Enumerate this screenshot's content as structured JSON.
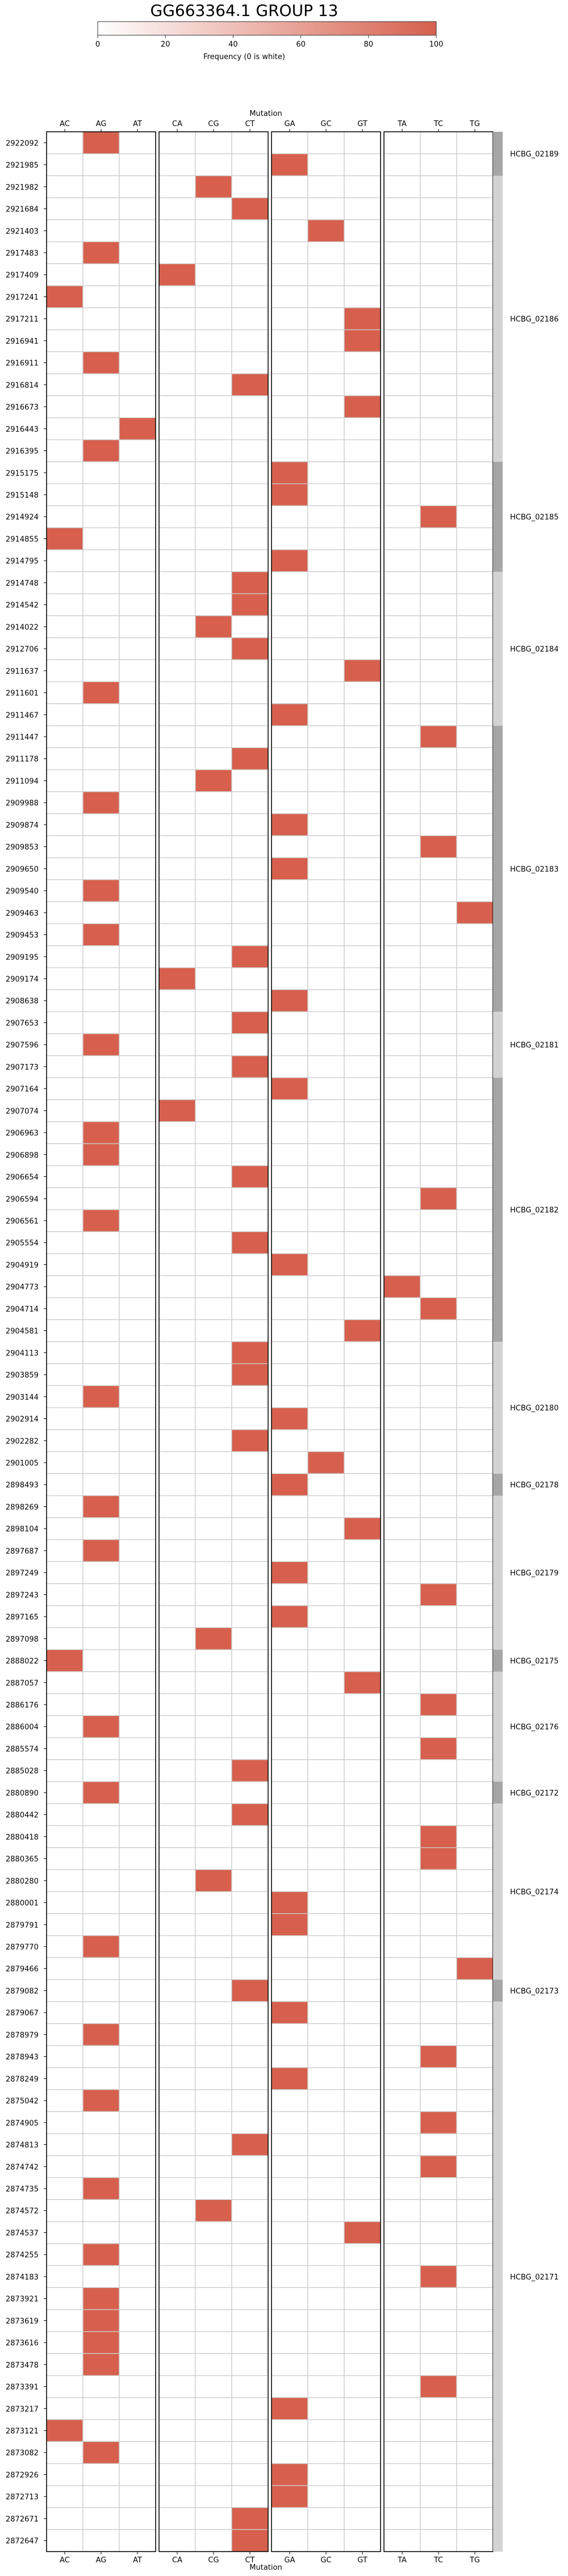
{
  "chart_data": {
    "type": "heatmap",
    "title": "GG663364.1 GROUP 13",
    "xlabel": "Mutation",
    "colorbar": {
      "label": "Frequency (0 is white)",
      "ticks": [
        0,
        20,
        40,
        60,
        80,
        100
      ],
      "range": [
        0,
        100
      ],
      "low_color": "#ffffff",
      "high_color": "#d6604d"
    },
    "panels": [
      {
        "name": "A",
        "columns": [
          "AC",
          "AG",
          "AT"
        ]
      },
      {
        "name": "C",
        "columns": [
          "CA",
          "CG",
          "CT"
        ]
      },
      {
        "name": "G",
        "columns": [
          "GA",
          "GC",
          "GT"
        ]
      },
      {
        "name": "T",
        "columns": [
          "TA",
          "TC",
          "TG"
        ]
      }
    ],
    "rows": [
      "2922092",
      "2921985",
      "2921982",
      "2921684",
      "2921403",
      "2917483",
      "2917409",
      "2917241",
      "2917211",
      "2916941",
      "2916911",
      "2916814",
      "2916673",
      "2916443",
      "2916395",
      "2915175",
      "2915148",
      "2914924",
      "2914855",
      "2914795",
      "2914748",
      "2914542",
      "2914022",
      "2912706",
      "2911637",
      "2911601",
      "2911467",
      "2911447",
      "2911178",
      "2911094",
      "2909988",
      "2909874",
      "2909853",
      "2909650",
      "2909540",
      "2909463",
      "2909453",
      "2909195",
      "2909174",
      "2908638",
      "2907653",
      "2907596",
      "2907173",
      "2907164",
      "2907074",
      "2906963",
      "2906898",
      "2906654",
      "2906594",
      "2906561",
      "2905554",
      "2904919",
      "2904773",
      "2904714",
      "2904581",
      "2904113",
      "2903859",
      "2903144",
      "2902914",
      "2902282",
      "2901005",
      "2898493",
      "2898269",
      "2898104",
      "2897687",
      "2897249",
      "2897243",
      "2897165",
      "2897098",
      "2888022",
      "2887057",
      "2886176",
      "2886004",
      "2885574",
      "2885028",
      "2880890",
      "2880442",
      "2880418",
      "2880365",
      "2880280",
      "2880001",
      "2879791",
      "2879770",
      "2879466",
      "2879082",
      "2879067",
      "2878979",
      "2878943",
      "2878249",
      "2875042",
      "2874905",
      "2874813",
      "2874742",
      "2874735",
      "2874572",
      "2874537",
      "2874255",
      "2874183",
      "2873921",
      "2873619",
      "2873616",
      "2873478",
      "2873391",
      "2873217",
      "2873121",
      "2873082",
      "2872926",
      "2872713",
      "2872671",
      "2872647"
    ],
    "cells": [
      {
        "row": "2922092",
        "col": "AG",
        "value": 100
      },
      {
        "row": "2921985",
        "col": "GA",
        "value": 100
      },
      {
        "row": "2921982",
        "col": "CG",
        "value": 100
      },
      {
        "row": "2921684",
        "col": "CT",
        "value": 100
      },
      {
        "row": "2921403",
        "col": "GC",
        "value": 100
      },
      {
        "row": "2917483",
        "col": "AG",
        "value": 100
      },
      {
        "row": "2917409",
        "col": "CA",
        "value": 100
      },
      {
        "row": "2917241",
        "col": "AC",
        "value": 100
      },
      {
        "row": "2917211",
        "col": "GT",
        "value": 100
      },
      {
        "row": "2916941",
        "col": "GT",
        "value": 100
      },
      {
        "row": "2916911",
        "col": "AG",
        "value": 100
      },
      {
        "row": "2916814",
        "col": "CT",
        "value": 100
      },
      {
        "row": "2916673",
        "col": "GT",
        "value": 100
      },
      {
        "row": "2916443",
        "col": "AT",
        "value": 100
      },
      {
        "row": "2916395",
        "col": "AG",
        "value": 100
      },
      {
        "row": "2915175",
        "col": "GA",
        "value": 100
      },
      {
        "row": "2915148",
        "col": "GA",
        "value": 100
      },
      {
        "row": "2914924",
        "col": "TC",
        "value": 100
      },
      {
        "row": "2914855",
        "col": "AC",
        "value": 100
      },
      {
        "row": "2914795",
        "col": "GA",
        "value": 100
      },
      {
        "row": "2914748",
        "col": "CT",
        "value": 100
      },
      {
        "row": "2914542",
        "col": "CT",
        "value": 100
      },
      {
        "row": "2914022",
        "col": "CG",
        "value": 100
      },
      {
        "row": "2912706",
        "col": "CT",
        "value": 100
      },
      {
        "row": "2911637",
        "col": "GT",
        "value": 100
      },
      {
        "row": "2911601",
        "col": "AG",
        "value": 100
      },
      {
        "row": "2911467",
        "col": "GA",
        "value": 100
      },
      {
        "row": "2911447",
        "col": "TC",
        "value": 100
      },
      {
        "row": "2911178",
        "col": "CT",
        "value": 100
      },
      {
        "row": "2911094",
        "col": "CG",
        "value": 100
      },
      {
        "row": "2909988",
        "col": "AG",
        "value": 100
      },
      {
        "row": "2909874",
        "col": "GA",
        "value": 100
      },
      {
        "row": "2909853",
        "col": "TC",
        "value": 100
      },
      {
        "row": "2909650",
        "col": "GA",
        "value": 100
      },
      {
        "row": "2909540",
        "col": "AG",
        "value": 100
      },
      {
        "row": "2909463",
        "col": "TG",
        "value": 100
      },
      {
        "row": "2909453",
        "col": "AG",
        "value": 100
      },
      {
        "row": "2909195",
        "col": "CT",
        "value": 100
      },
      {
        "row": "2909174",
        "col": "CA",
        "value": 100
      },
      {
        "row": "2908638",
        "col": "GA",
        "value": 100
      },
      {
        "row": "2907653",
        "col": "CT",
        "value": 100
      },
      {
        "row": "2907596",
        "col": "AG",
        "value": 100
      },
      {
        "row": "2907173",
        "col": "CT",
        "value": 100
      },
      {
        "row": "2907164",
        "col": "GA",
        "value": 100
      },
      {
        "row": "2907074",
        "col": "CA",
        "value": 100
      },
      {
        "row": "2906963",
        "col": "AG",
        "value": 100
      },
      {
        "row": "2906898",
        "col": "AG",
        "value": 100
      },
      {
        "row": "2906654",
        "col": "CT",
        "value": 100
      },
      {
        "row": "2906594",
        "col": "TC",
        "value": 100
      },
      {
        "row": "2906561",
        "col": "AG",
        "value": 100
      },
      {
        "row": "2905554",
        "col": "CT",
        "value": 100
      },
      {
        "row": "2904919",
        "col": "GA",
        "value": 100
      },
      {
        "row": "2904773",
        "col": "TA",
        "value": 100
      },
      {
        "row": "2904714",
        "col": "TC",
        "value": 100
      },
      {
        "row": "2904581",
        "col": "GT",
        "value": 100
      },
      {
        "row": "2904113",
        "col": "CT",
        "value": 100
      },
      {
        "row": "2903859",
        "col": "CT",
        "value": 100
      },
      {
        "row": "2903144",
        "col": "AG",
        "value": 100
      },
      {
        "row": "2902914",
        "col": "GA",
        "value": 100
      },
      {
        "row": "2902282",
        "col": "CT",
        "value": 100
      },
      {
        "row": "2901005",
        "col": "GC",
        "value": 100
      },
      {
        "row": "2898493",
        "col": "GA",
        "value": 100
      },
      {
        "row": "2898269",
        "col": "AG",
        "value": 100
      },
      {
        "row": "2898104",
        "col": "GT",
        "value": 100
      },
      {
        "row": "2897687",
        "col": "AG",
        "value": 100
      },
      {
        "row": "2897249",
        "col": "GA",
        "value": 100
      },
      {
        "row": "2897243",
        "col": "TC",
        "value": 100
      },
      {
        "row": "2897165",
        "col": "GA",
        "value": 100
      },
      {
        "row": "2897098",
        "col": "CG",
        "value": 100
      },
      {
        "row": "2888022",
        "col": "AC",
        "value": 100
      },
      {
        "row": "2887057",
        "col": "GT",
        "value": 100
      },
      {
        "row": "2886176",
        "col": "TC",
        "value": 100
      },
      {
        "row": "2886004",
        "col": "AG",
        "value": 100
      },
      {
        "row": "2885574",
        "col": "TC",
        "value": 100
      },
      {
        "row": "2885028",
        "col": "CT",
        "value": 100
      },
      {
        "row": "2880890",
        "col": "AG",
        "value": 100
      },
      {
        "row": "2880442",
        "col": "CT",
        "value": 100
      },
      {
        "row": "2880418",
        "col": "TC",
        "value": 100
      },
      {
        "row": "2880365",
        "col": "TC",
        "value": 100
      },
      {
        "row": "2880280",
        "col": "CG",
        "value": 100
      },
      {
        "row": "2880001",
        "col": "GA",
        "value": 100
      },
      {
        "row": "2879791",
        "col": "GA",
        "value": 100
      },
      {
        "row": "2879770",
        "col": "AG",
        "value": 100
      },
      {
        "row": "2879466",
        "col": "TG",
        "value": 100
      },
      {
        "row": "2879082",
        "col": "CT",
        "value": 100
      },
      {
        "row": "2879067",
        "col": "GA",
        "value": 100
      },
      {
        "row": "2878979",
        "col": "AG",
        "value": 100
      },
      {
        "row": "2878943",
        "col": "TC",
        "value": 100
      },
      {
        "row": "2878249",
        "col": "GA",
        "value": 100
      },
      {
        "row": "2875042",
        "col": "AG",
        "value": 100
      },
      {
        "row": "2874905",
        "col": "TC",
        "value": 100
      },
      {
        "row": "2874813",
        "col": "CT",
        "value": 100
      },
      {
        "row": "2874742",
        "col": "TC",
        "value": 100
      },
      {
        "row": "2874735",
        "col": "AG",
        "value": 100
      },
      {
        "row": "2874572",
        "col": "CG",
        "value": 100
      },
      {
        "row": "2874537",
        "col": "GT",
        "value": 100
      },
      {
        "row": "2874255",
        "col": "AG",
        "value": 100
      },
      {
        "row": "2874183",
        "col": "TC",
        "value": 100
      },
      {
        "row": "2873921",
        "col": "AG",
        "value": 100
      },
      {
        "row": "2873619",
        "col": "AG",
        "value": 100
      },
      {
        "row": "2873616",
        "col": "AG",
        "value": 100
      },
      {
        "row": "2873478",
        "col": "AG",
        "value": 100
      },
      {
        "row": "2873391",
        "col": "TC",
        "value": 100
      },
      {
        "row": "2873217",
        "col": "GA",
        "value": 100
      },
      {
        "row": "2873121",
        "col": "AC",
        "value": 100
      },
      {
        "row": "2873082",
        "col": "AG",
        "value": 100
      },
      {
        "row": "2872926",
        "col": "GA",
        "value": 100
      },
      {
        "row": "2872713",
        "col": "GA",
        "value": 100
      },
      {
        "row": "2872671",
        "col": "CT",
        "value": 100
      },
      {
        "row": "2872647",
        "col": "CT",
        "value": 100
      }
    ],
    "groups": [
      {
        "label": "HCBG_02189",
        "start": "2922092",
        "end": "2921985",
        "shade": "#a6a6a6"
      },
      {
        "label": "HCBG_02186",
        "start": "2921982",
        "end": "2916395",
        "shade": "#d3d3d3"
      },
      {
        "label": "HCBG_02185",
        "start": "2915175",
        "end": "2914795",
        "shade": "#a6a6a6"
      },
      {
        "label": "HCBG_02184",
        "start": "2914748",
        "end": "2911467",
        "shade": "#d3d3d3"
      },
      {
        "label": "HCBG_02183",
        "start": "2911447",
        "end": "2908638",
        "shade": "#a6a6a6"
      },
      {
        "label": "HCBG_02181",
        "start": "2907653",
        "end": "2907173",
        "shade": "#d3d3d3"
      },
      {
        "label": "HCBG_02182",
        "start": "2907164",
        "end": "2904581",
        "shade": "#a6a6a6"
      },
      {
        "label": "HCBG_02180",
        "start": "2904113",
        "end": "2901005",
        "shade": "#d3d3d3"
      },
      {
        "label": "HCBG_02178",
        "start": "2898493",
        "end": "2898493",
        "shade": "#a6a6a6"
      },
      {
        "label": "HCBG_02179",
        "start": "2898269",
        "end": "2897098",
        "shade": "#d3d3d3"
      },
      {
        "label": "HCBG_02175",
        "start": "2888022",
        "end": "2888022",
        "shade": "#a6a6a6"
      },
      {
        "label": "HCBG_02176",
        "start": "2887057",
        "end": "2885028",
        "shade": "#d3d3d3"
      },
      {
        "label": "HCBG_02172",
        "start": "2880890",
        "end": "2880890",
        "shade": "#a6a6a6"
      },
      {
        "label": "HCBG_02174",
        "start": "2880442",
        "end": "2879466",
        "shade": "#d3d3d3"
      },
      {
        "label": "HCBG_02173",
        "start": "2879082",
        "end": "2879082",
        "shade": "#a6a6a6"
      },
      {
        "label": "HCBG_02171",
        "start": "2879067",
        "end": "2872647",
        "shade": "#d3d3d3"
      }
    ]
  }
}
